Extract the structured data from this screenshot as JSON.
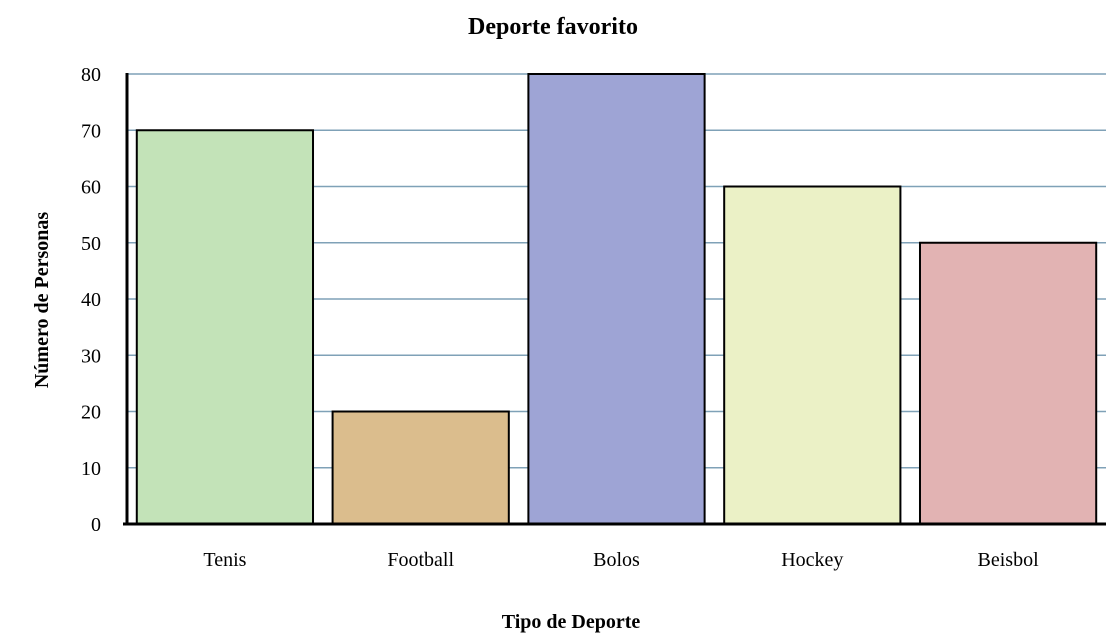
{
  "chart_data": {
    "type": "bar",
    "title": "Deporte favorito",
    "xlabel": "Tipo de Deporte",
    "ylabel": "Número de Personas",
    "categories": [
      "Tenis",
      "Football",
      "Bolos",
      "Hockey",
      "Beisbol"
    ],
    "values": [
      70,
      20,
      80,
      60,
      50
    ],
    "ylim": [
      0,
      80
    ],
    "yticks": [
      "0",
      "10",
      "20",
      "30",
      "40",
      "50",
      "60",
      "70",
      "80"
    ],
    "grid": true,
    "legend": "none",
    "colors": {
      "bars": [
        "#c3e3b8",
        "#dbbd8d",
        "#9ea4d5",
        "#ebf1c6",
        "#e2b3b3"
      ],
      "grid": "#7fa1b7"
    }
  }
}
